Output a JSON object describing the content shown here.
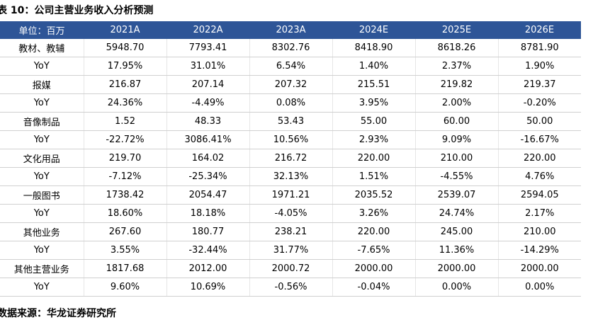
{
  "header": {
    "title": "表 10：公司主营业务收入分析预测"
  },
  "table": {
    "columns": [
      "单位：百万",
      "2021A",
      "2022A",
      "2023A",
      "2024E",
      "2025E",
      "2026E"
    ],
    "rows": [
      [
        "教材、教辅",
        "5948.70",
        "7793.41",
        "8302.76",
        "8418.90",
        "8618.26",
        "8781.90"
      ],
      [
        "YoY",
        "17.95%",
        "31.01%",
        "6.54%",
        "1.40%",
        "2.37%",
        "1.90%"
      ],
      [
        "报媒",
        "216.87",
        "207.14",
        "207.32",
        "215.51",
        "219.82",
        "219.37"
      ],
      [
        "YoY",
        "24.36%",
        "-4.49%",
        "0.08%",
        "3.95%",
        "2.00%",
        "-0.20%"
      ],
      [
        "音像制品",
        "1.52",
        "48.33",
        "53.43",
        "55.00",
        "60.00",
        "50.00"
      ],
      [
        "YoY",
        "-22.72%",
        "3086.41%",
        "10.56%",
        "2.93%",
        "9.09%",
        "-16.67%"
      ],
      [
        "文化用品",
        "219.70",
        "164.02",
        "216.72",
        "220.00",
        "210.00",
        "220.00"
      ],
      [
        "YoY",
        "-7.12%",
        "-25.34%",
        "32.13%",
        "1.51%",
        "-4.55%",
        "4.76%"
      ],
      [
        "一般图书",
        "1738.42",
        "2054.47",
        "1971.21",
        "2035.52",
        "2539.07",
        "2594.05"
      ],
      [
        "YoY",
        "18.60%",
        "18.18%",
        "-4.05%",
        "3.26%",
        "24.74%",
        "2.17%"
      ],
      [
        "其他业务",
        "267.60",
        "180.77",
        "238.21",
        "220.00",
        "245.00",
        "210.00"
      ],
      [
        "YoY",
        "3.55%",
        "-32.44%",
        "31.77%",
        "-7.65%",
        "11.36%",
        "-14.29%"
      ],
      [
        "其他主营业务",
        "1817.68",
        "2012.00",
        "2000.72",
        "2000.00",
        "2000.00",
        "2000.00"
      ],
      [
        "YoY",
        "9.60%",
        "10.69%",
        "-0.56%",
        "-0.04%",
        "0.00%",
        "0.00%"
      ]
    ]
  },
  "source": "数据来源：华龙证券研究所"
}
